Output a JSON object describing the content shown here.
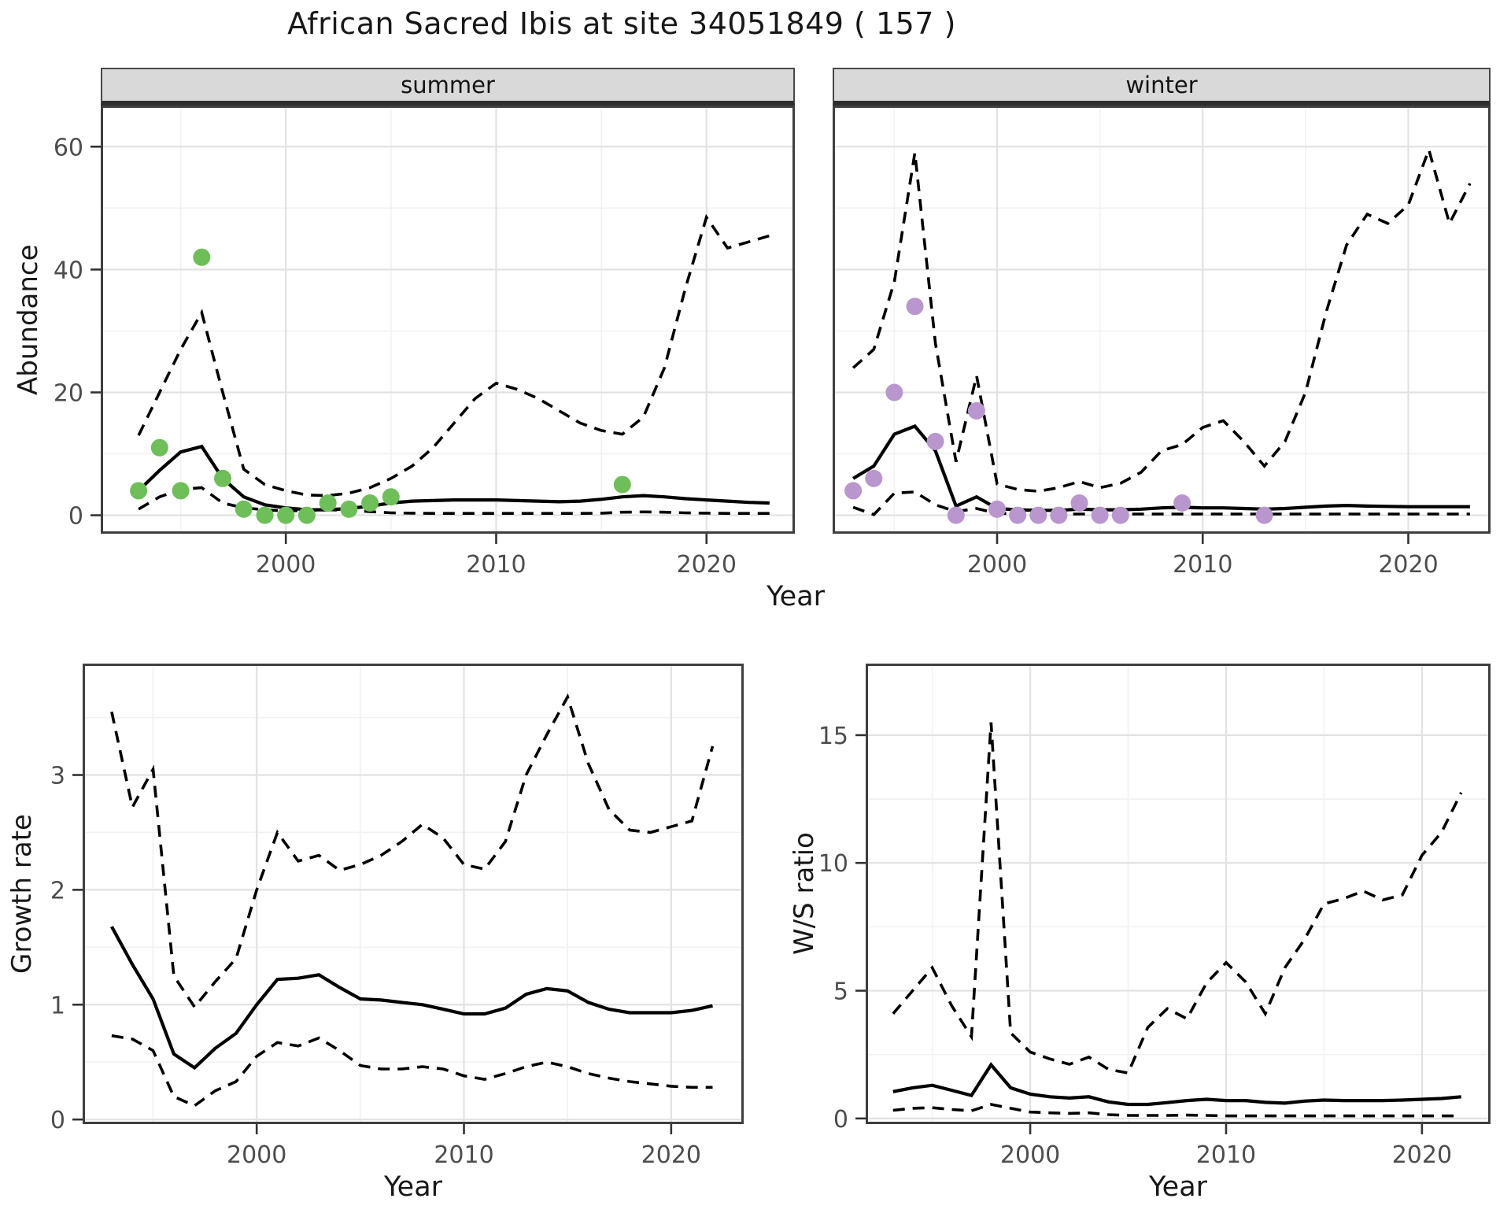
{
  "title": "African Sacred Ibis at site 34051849 ( 157 )",
  "colors": {
    "line": "#000000",
    "summer_points": "#6EBE59",
    "winter_points": "#B996CD",
    "strip_background": "#D9D9D9",
    "panel_border": "#3F3F3F",
    "grid_major": "#E2E2E2",
    "grid_minor": "#F1F1F1",
    "tick_text": "#4D4D4D"
  },
  "chart_data": [
    {
      "type": "line",
      "name": "abundance-summer",
      "facet": "summer",
      "xlabel": "Year",
      "ylabel": "Abundance",
      "legend": "none",
      "grid": true,
      "xlim": [
        1991.2,
        2024.2
      ],
      "ylim": [
        -3,
        66.7
      ],
      "xticks": [
        2000,
        2010,
        2020
      ],
      "yticks": [
        0,
        20,
        40,
        60
      ],
      "xminor": [
        1995,
        2005,
        2015
      ],
      "yminor": [
        10,
        30,
        50
      ],
      "show_y_axis": true,
      "x": [
        1993,
        1994,
        1995,
        1996,
        1997,
        1998,
        1999,
        2000,
        2001,
        2002,
        2003,
        2004,
        2005,
        2006,
        2007,
        2008,
        2009,
        2010,
        2011,
        2012,
        2013,
        2014,
        2015,
        2016,
        2017,
        2018,
        2019,
        2020,
        2021,
        2022,
        2023
      ],
      "series": [
        {
          "name": "estimate",
          "style": "solid",
          "values": [
            4,
            7.3,
            10.3,
            11.2,
            6,
            3,
            1.7,
            1.2,
            0.9,
            0.9,
            1.1,
            1.5,
            2,
            2.3,
            2.4,
            2.5,
            2.5,
            2.5,
            2.4,
            2.3,
            2.2,
            2.3,
            2.6,
            3,
            3.2,
            3,
            2.7,
            2.5,
            2.3,
            2.1,
            2
          ]
        },
        {
          "name": "upper_ci",
          "style": "dashed",
          "values": [
            13,
            20,
            27,
            33,
            20,
            7.5,
            5,
            4,
            3.3,
            3.2,
            3.6,
            4.5,
            6,
            8,
            11,
            15,
            19,
            21.5,
            20.5,
            19,
            17,
            15,
            13.8,
            13.2,
            16,
            24,
            37,
            48.5,
            43.5,
            44.5,
            45.5
          ]
        },
        {
          "name": "lower_ci",
          "style": "dashed",
          "values": [
            1,
            3,
            4.2,
            4.5,
            2,
            1.2,
            0.9,
            0.7,
            0.8,
            0.9,
            0.8,
            0.6,
            0.4,
            0.35,
            0.3,
            0.3,
            0.3,
            0.3,
            0.3,
            0.3,
            0.3,
            0.3,
            0.35,
            0.5,
            0.55,
            0.5,
            0.4,
            0.35,
            0.3,
            0.3,
            0.3
          ]
        }
      ],
      "points": {
        "name": "observed-counts",
        "color": "#6EBE59",
        "x": [
          1993,
          1994,
          1995,
          1996,
          1997,
          1998,
          1999,
          2000,
          2001,
          2002,
          2003,
          2004,
          2005,
          2016
        ],
        "y": [
          4,
          11,
          4,
          42,
          6,
          1,
          0,
          0,
          0,
          2,
          1,
          2,
          3,
          5
        ]
      }
    },
    {
      "type": "line",
      "name": "abundance-winter",
      "facet": "winter",
      "xlabel": "Year",
      "ylabel": "Abundance",
      "legend": "none",
      "grid": true,
      "xlim": [
        1992.0,
        2024.0
      ],
      "ylim": [
        -3,
        66.7
      ],
      "xticks": [
        2000,
        2010,
        2020
      ],
      "yticks": [
        0,
        20,
        40,
        60
      ],
      "xminor": [
        1995,
        2005,
        2015
      ],
      "yminor": [
        10,
        30,
        50
      ],
      "show_y_axis": false,
      "x": [
        1993,
        1994,
        1995,
        1996,
        1997,
        1998,
        1999,
        2000,
        2001,
        2002,
        2003,
        2004,
        2005,
        2006,
        2007,
        2008,
        2009,
        2010,
        2011,
        2012,
        2013,
        2014,
        2015,
        2016,
        2017,
        2018,
        2019,
        2020,
        2021,
        2022,
        2023
      ],
      "series": [
        {
          "name": "estimate",
          "style": "solid",
          "values": [
            6,
            8,
            13.2,
            14.5,
            10.5,
            1.5,
            3,
            1.1,
            0.9,
            0.8,
            0.8,
            1,
            0.9,
            0.9,
            1,
            1.2,
            1.3,
            1.2,
            1.2,
            1.1,
            1,
            1.1,
            1.3,
            1.5,
            1.6,
            1.5,
            1.45,
            1.4,
            1.4,
            1.4,
            1.4
          ]
        },
        {
          "name": "upper_ci",
          "style": "dashed",
          "values": [
            24,
            27,
            38,
            59,
            28,
            8.7,
            22.7,
            5.1,
            4.2,
            3.9,
            4.5,
            5.5,
            4.5,
            5.2,
            7,
            10.5,
            11.5,
            14.3,
            15.4,
            12,
            8,
            12,
            20,
            33,
            44,
            49,
            47.5,
            50.5,
            59.5,
            47.5,
            54
          ]
        },
        {
          "name": "lower_ci",
          "style": "dashed",
          "values": [
            1.3,
            0.1,
            3.6,
            3.8,
            1.7,
            0.6,
            1.1,
            0.3,
            0.25,
            0.2,
            0.2,
            0.2,
            0.2,
            0.2,
            0.2,
            0.2,
            0.2,
            0.2,
            0.2,
            0.2,
            0.2,
            0.2,
            0.2,
            0.2,
            0.2,
            0.2,
            0.2,
            0.2,
            0.2,
            0.2,
            0.2
          ]
        }
      ],
      "points": {
        "name": "observed-counts",
        "color": "#B996CD",
        "x": [
          1993,
          1994,
          1995,
          1996,
          1997,
          1998,
          1999,
          2000,
          2001,
          2002,
          2003,
          2004,
          2005,
          2006,
          2009,
          2013
        ],
        "y": [
          4,
          6,
          20,
          34,
          12,
          0,
          17,
          1,
          0,
          0,
          0,
          2,
          0,
          0,
          2,
          0
        ]
      }
    },
    {
      "type": "line",
      "name": "growth-rate",
      "facet": "",
      "xlabel": "Year",
      "ylabel": "Growth rate",
      "legend": "none",
      "grid": true,
      "xlim": [
        1991.6,
        2023.5
      ],
      "ylim": [
        -0.04,
        3.97
      ],
      "xticks": [
        2000,
        2010,
        2020
      ],
      "yticks": [
        0,
        1,
        2,
        3
      ],
      "xminor": [
        1995,
        2005,
        2015
      ],
      "yminor": [
        0.5,
        1.5,
        2.5,
        3.5
      ],
      "show_y_axis": true,
      "x": [
        1993,
        1994,
        1995,
        1996,
        1997,
        1998,
        1999,
        2000,
        2001,
        2002,
        2003,
        2004,
        2005,
        2006,
        2007,
        2008,
        2009,
        2010,
        2011,
        2012,
        2013,
        2014,
        2015,
        2016,
        2017,
        2018,
        2019,
        2020,
        2021,
        2022
      ],
      "series": [
        {
          "name": "estimate",
          "style": "solid",
          "values": [
            1.68,
            1.35,
            1.05,
            0.57,
            0.45,
            0.62,
            0.75,
            1,
            1.22,
            1.23,
            1.26,
            1.15,
            1.05,
            1.04,
            1.02,
            1,
            0.96,
            0.92,
            0.92,
            0.97,
            1.09,
            1.14,
            1.12,
            1.02,
            0.96,
            0.93,
            0.93,
            0.93,
            0.95,
            0.99
          ]
        },
        {
          "name": "upper_ci",
          "style": "dashed",
          "values": [
            3.55,
            2.72,
            3.05,
            1.25,
            0.98,
            1.2,
            1.4,
            2,
            2.5,
            2.25,
            2.3,
            2.17,
            2.22,
            2.3,
            2.42,
            2.57,
            2.45,
            2.22,
            2.18,
            2.42,
            3,
            3.35,
            3.68,
            3.1,
            2.7,
            2.52,
            2.5,
            2.55,
            2.6,
            3.25
          ]
        },
        {
          "name": "lower_ci",
          "style": "dashed",
          "values": [
            0.73,
            0.7,
            0.6,
            0.2,
            0.12,
            0.25,
            0.33,
            0.55,
            0.67,
            0.64,
            0.71,
            0.6,
            0.47,
            0.44,
            0.44,
            0.46,
            0.44,
            0.38,
            0.35,
            0.4,
            0.46,
            0.5,
            0.46,
            0.4,
            0.36,
            0.33,
            0.31,
            0.29,
            0.28,
            0.28
          ]
        }
      ],
      "points": null
    },
    {
      "type": "line",
      "name": "ws-ratio",
      "facet": "",
      "xlabel": "Year",
      "ylabel": "W/S ratio",
      "legend": "none",
      "grid": true,
      "xlim": [
        1991.6,
        2023.5
      ],
      "ylim": [
        -0.22,
        17.8
      ],
      "xticks": [
        2000,
        2010,
        2020
      ],
      "yticks": [
        0,
        5,
        10,
        15
      ],
      "xminor": [
        1995,
        2005,
        2015
      ],
      "yminor": [
        2.5,
        7.5,
        12.5
      ],
      "show_y_axis": true,
      "x": [
        1993,
        1994,
        1995,
        1996,
        1997,
        1998,
        1999,
        2000,
        2001,
        2002,
        2003,
        2004,
        2005,
        2006,
        2007,
        2008,
        2009,
        2010,
        2011,
        2012,
        2013,
        2014,
        2015,
        2016,
        2017,
        2018,
        2019,
        2020,
        2021,
        2022
      ],
      "series": [
        {
          "name": "estimate",
          "style": "solid",
          "values": [
            1.05,
            1.2,
            1.3,
            1.1,
            0.9,
            2.1,
            1.2,
            0.95,
            0.85,
            0.8,
            0.85,
            0.65,
            0.55,
            0.55,
            0.62,
            0.7,
            0.75,
            0.7,
            0.7,
            0.63,
            0.6,
            0.68,
            0.72,
            0.7,
            0.7,
            0.7,
            0.72,
            0.75,
            0.78,
            0.85
          ]
        },
        {
          "name": "upper_ci",
          "style": "dashed",
          "values": [
            4.1,
            5,
            5.9,
            4.4,
            3.2,
            15.5,
            3.35,
            2.6,
            2.33,
            2.12,
            2.4,
            1.92,
            1.78,
            3.56,
            4.3,
            3.9,
            5.3,
            6.1,
            5.34,
            4.1,
            5.9,
            7,
            8.4,
            8.6,
            8.9,
            8.55,
            8.75,
            10.3,
            11.2,
            12.75
          ]
        },
        {
          "name": "lower_ci",
          "style": "dashed",
          "values": [
            0.32,
            0.4,
            0.42,
            0.35,
            0.3,
            0.55,
            0.4,
            0.25,
            0.22,
            0.2,
            0.22,
            0.15,
            0.12,
            0.12,
            0.12,
            0.13,
            0.12,
            0.1,
            0.1,
            0.1,
            0.1,
            0.1,
            0.1,
            0.1,
            0.1,
            0.1,
            0.1,
            0.1,
            0.1,
            0.1
          ]
        }
      ],
      "points": null
    }
  ]
}
